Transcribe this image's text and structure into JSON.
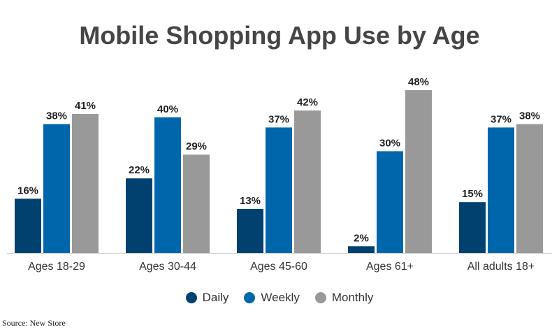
{
  "chart_data": {
    "type": "bar",
    "title": "Mobile Shopping App Use by Age",
    "categories": [
      "Ages 18-29",
      "Ages 30-44",
      "Ages 45-60",
      "Ages 61+",
      "All adults 18+"
    ],
    "series": [
      {
        "name": "Daily",
        "values": [
          16,
          22,
          13,
          2,
          15
        ],
        "labels": [
          "16%",
          "22%",
          "13%",
          "2%",
          "15%"
        ],
        "color": "#004170"
      },
      {
        "name": "Weekly",
        "values": [
          38,
          40,
          37,
          30,
          37
        ],
        "labels": [
          "38%",
          "40%",
          "37%",
          "30%",
          "37%"
        ],
        "color": "#0066AB"
      },
      {
        "name": "Monthly",
        "values": [
          41,
          29,
          42,
          48,
          38
        ],
        "labels": [
          "41%",
          "29%",
          "42%",
          "48%",
          "38%"
        ],
        "color": "#999999"
      }
    ],
    "ylim": [
      0,
      48
    ],
    "grid": false,
    "legend_position": "bottom"
  },
  "source": "Source: New Store"
}
